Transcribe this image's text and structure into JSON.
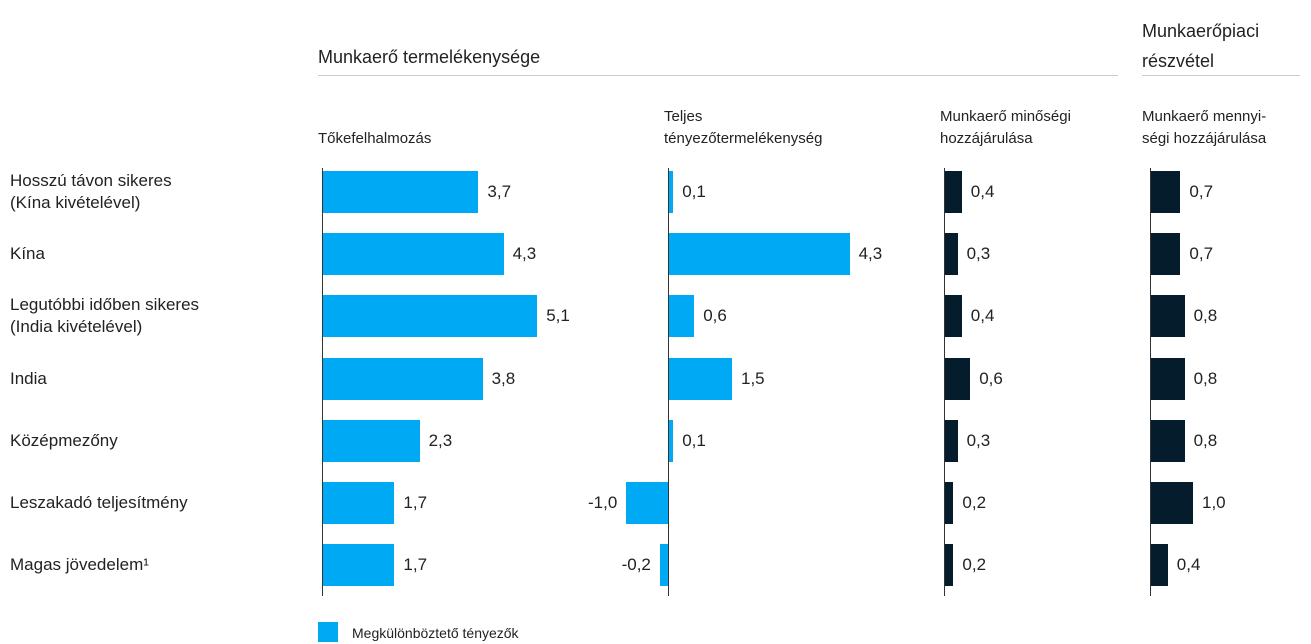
{
  "chart_data": {
    "type": "bar",
    "orientation": "horizontal",
    "groups": [
      "Munkaerő termelékenysége",
      "Munkaerőpiaci\nrészvétel"
    ],
    "categories": [
      "Hosszú távon sikeres\n(Kína kivételével)",
      "Kína",
      "Legutóbbi időben sikeres\n(India kivételével)",
      "India",
      "Középmezőny",
      "Leszakadó teljesítmény",
      "Magas jövedelem¹"
    ],
    "series": [
      {
        "name": "Tőkefelhalmozás",
        "color": "#00a9f4",
        "values": [
          3.7,
          4.3,
          5.1,
          3.8,
          2.3,
          1.7,
          1.7
        ],
        "value_labels": [
          "3,7",
          "4,3",
          "5,1",
          "3,8",
          "2,3",
          "1,7",
          "1,7"
        ]
      },
      {
        "name": "Teljes\ntényezőtermelékenység",
        "color": "#00a9f4",
        "values": [
          0.1,
          4.3,
          0.6,
          1.5,
          0.1,
          -1.0,
          -0.2
        ],
        "value_labels": [
          "0,1",
          "4,3",
          "0,6",
          "1,5",
          "0,1",
          "-1,0",
          "-0,2"
        ]
      },
      {
        "name": "Munkaerő minőségi\nhozzájárulása",
        "color": "#051c2c",
        "values": [
          0.4,
          0.3,
          0.4,
          0.6,
          0.3,
          0.2,
          0.2
        ],
        "value_labels": [
          "0,4",
          "0,3",
          "0,4",
          "0,6",
          "0,3",
          "0,2",
          "0,2"
        ]
      },
      {
        "name": "Munkaerő mennyi-\nségi hozzájárulása",
        "color": "#051c2c",
        "values": [
          0.7,
          0.7,
          0.8,
          0.8,
          0.8,
          1.0,
          0.4
        ],
        "value_labels": [
          "0,7",
          "0,7",
          "0,8",
          "0,8",
          "0,8",
          "1,0",
          "0,4"
        ]
      }
    ],
    "legend": [
      {
        "name": "Megkülönböztető tényezők",
        "color": "#00a9f4"
      }
    ]
  }
}
